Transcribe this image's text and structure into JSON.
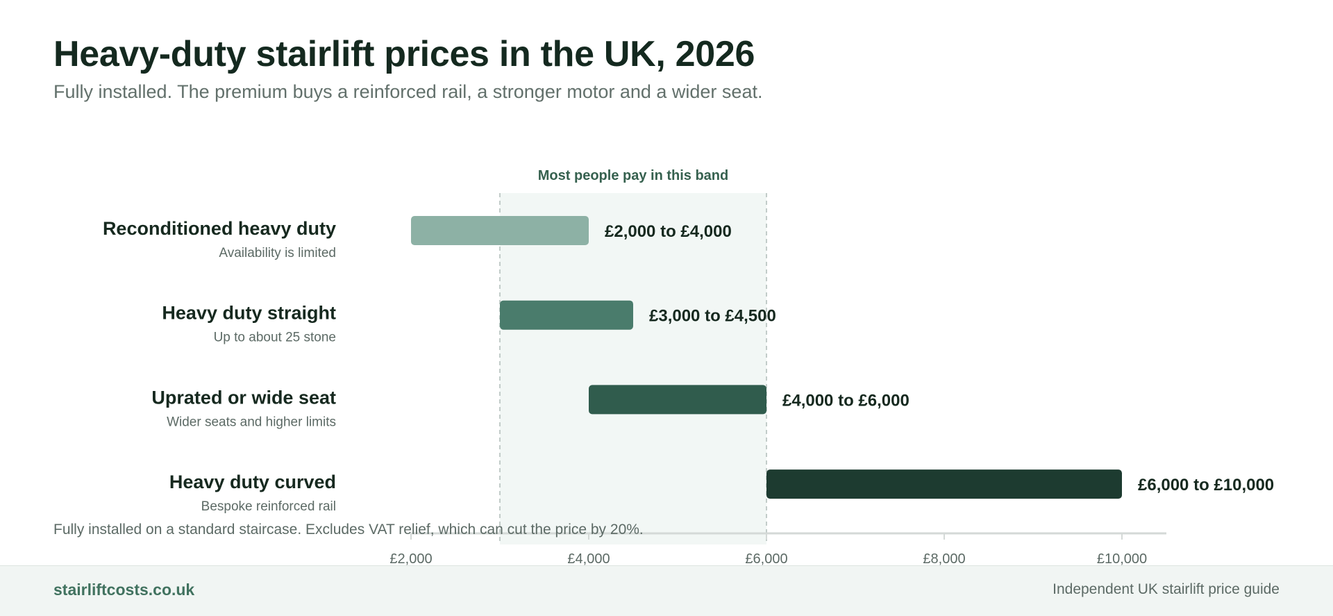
{
  "header": {
    "title": "Heavy-duty stairlift prices in the UK, 2026",
    "subtitle": "Fully installed. The premium buys a reinforced rail, a stronger motor and a wider seat."
  },
  "chart_data": {
    "type": "bar",
    "orientation": "horizontal-range",
    "title": "Heavy-duty stairlift prices in the UK, 2026",
    "subtitle": "Fully installed. The premium buys a reinforced rail, a stronger motor and a wider seat.",
    "xlim": [
      2000,
      10500
    ],
    "x_ticks": [
      2000,
      4000,
      6000,
      8000,
      10000
    ],
    "x_tick_labels": [
      "£2,000",
      "£4,000",
      "£6,000",
      "£8,000",
      "£10,000"
    ],
    "highlight_band": {
      "from": 3000,
      "to": 6000,
      "label": "Most people pay in this band"
    },
    "categories": [
      {
        "label": "Reconditioned heavy duty",
        "sublabel": "Availability is limited",
        "low": 2000,
        "high": 4000,
        "value_label": "£2,000 to £4,000",
        "color": "#8db1a5"
      },
      {
        "label": "Heavy duty straight",
        "sublabel": "Up to about 25 stone",
        "low": 3000,
        "high": 4500,
        "value_label": "£3,000 to £4,500",
        "color": "#4a7c6c"
      },
      {
        "label": "Uprated or wide seat",
        "sublabel": "Wider seats and higher limits",
        "low": 4000,
        "high": 6000,
        "value_label": "£4,000 to £6,000",
        "color": "#305c4d"
      },
      {
        "label": "Heavy duty curved",
        "sublabel": "Bespoke reinforced rail",
        "low": 6000,
        "high": 10000,
        "value_label": "£6,000 to £10,000",
        "color": "#1d3b30"
      }
    ],
    "grid": false,
    "legend": "none"
  },
  "footnote": "Fully installed on a standard staircase. Excludes VAT relief, which can cut the price by 20%.",
  "footer": {
    "site": "stairliftcosts.co.uk",
    "tagline": "Independent UK stairlift price guide"
  },
  "colors": {
    "band_fill": "#f2f7f5",
    "band_line": "#c2ccc9",
    "axis_line": "#d4d9d7",
    "footer_bg": "#f1f5f3",
    "accent": "#41725f"
  }
}
